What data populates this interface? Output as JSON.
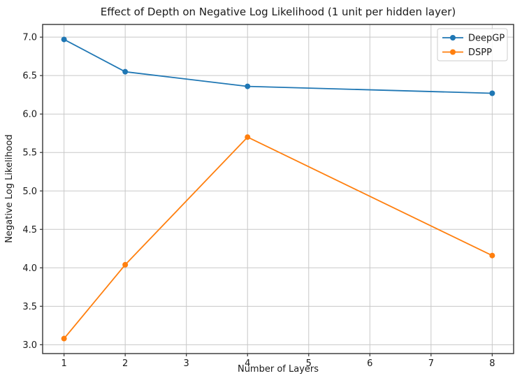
{
  "chart_data": {
    "type": "line",
    "title": "Effect of Depth on Negative Log Likelihood (1 unit per hidden layer)",
    "xlabel": "Number of Layers",
    "ylabel": "Negative Log Likelihood",
    "x": [
      1,
      2,
      4,
      8
    ],
    "series": [
      {
        "name": "DeepGP",
        "color": "#1f77b4",
        "values": [
          6.97,
          6.55,
          6.36,
          6.27
        ]
      },
      {
        "name": "DSPP",
        "color": "#ff7f0e",
        "values": [
          3.08,
          4.04,
          5.7,
          4.16
        ]
      }
    ],
    "xticks": [
      1,
      2,
      3,
      4,
      5,
      6,
      7,
      8
    ],
    "xtick_labels": [
      "1",
      "2",
      "3",
      "4",
      "5",
      "6",
      "7",
      "8"
    ],
    "yticks": [
      3.0,
      3.5,
      4.0,
      4.5,
      5.0,
      5.5,
      6.0,
      6.5,
      7.0
    ],
    "ytick_labels": [
      "3.0",
      "3.5",
      "4.0",
      "4.5",
      "5.0",
      "5.5",
      "6.0",
      "6.5",
      "7.0"
    ],
    "xlim": [
      0.65,
      8.35
    ],
    "ylim": [
      2.885,
      7.165
    ],
    "grid": true,
    "legend_position": "upper right",
    "legend_labels": [
      "DeepGP",
      "DSPP"
    ],
    "colors": {
      "grid": "#c8c8c8",
      "spine": "#333333",
      "tick": "#333333",
      "text": "#1a1a1a",
      "legend_border": "#cccccc",
      "legend_background": "#ffffff",
      "figure_background": "#ffffff"
    }
  }
}
